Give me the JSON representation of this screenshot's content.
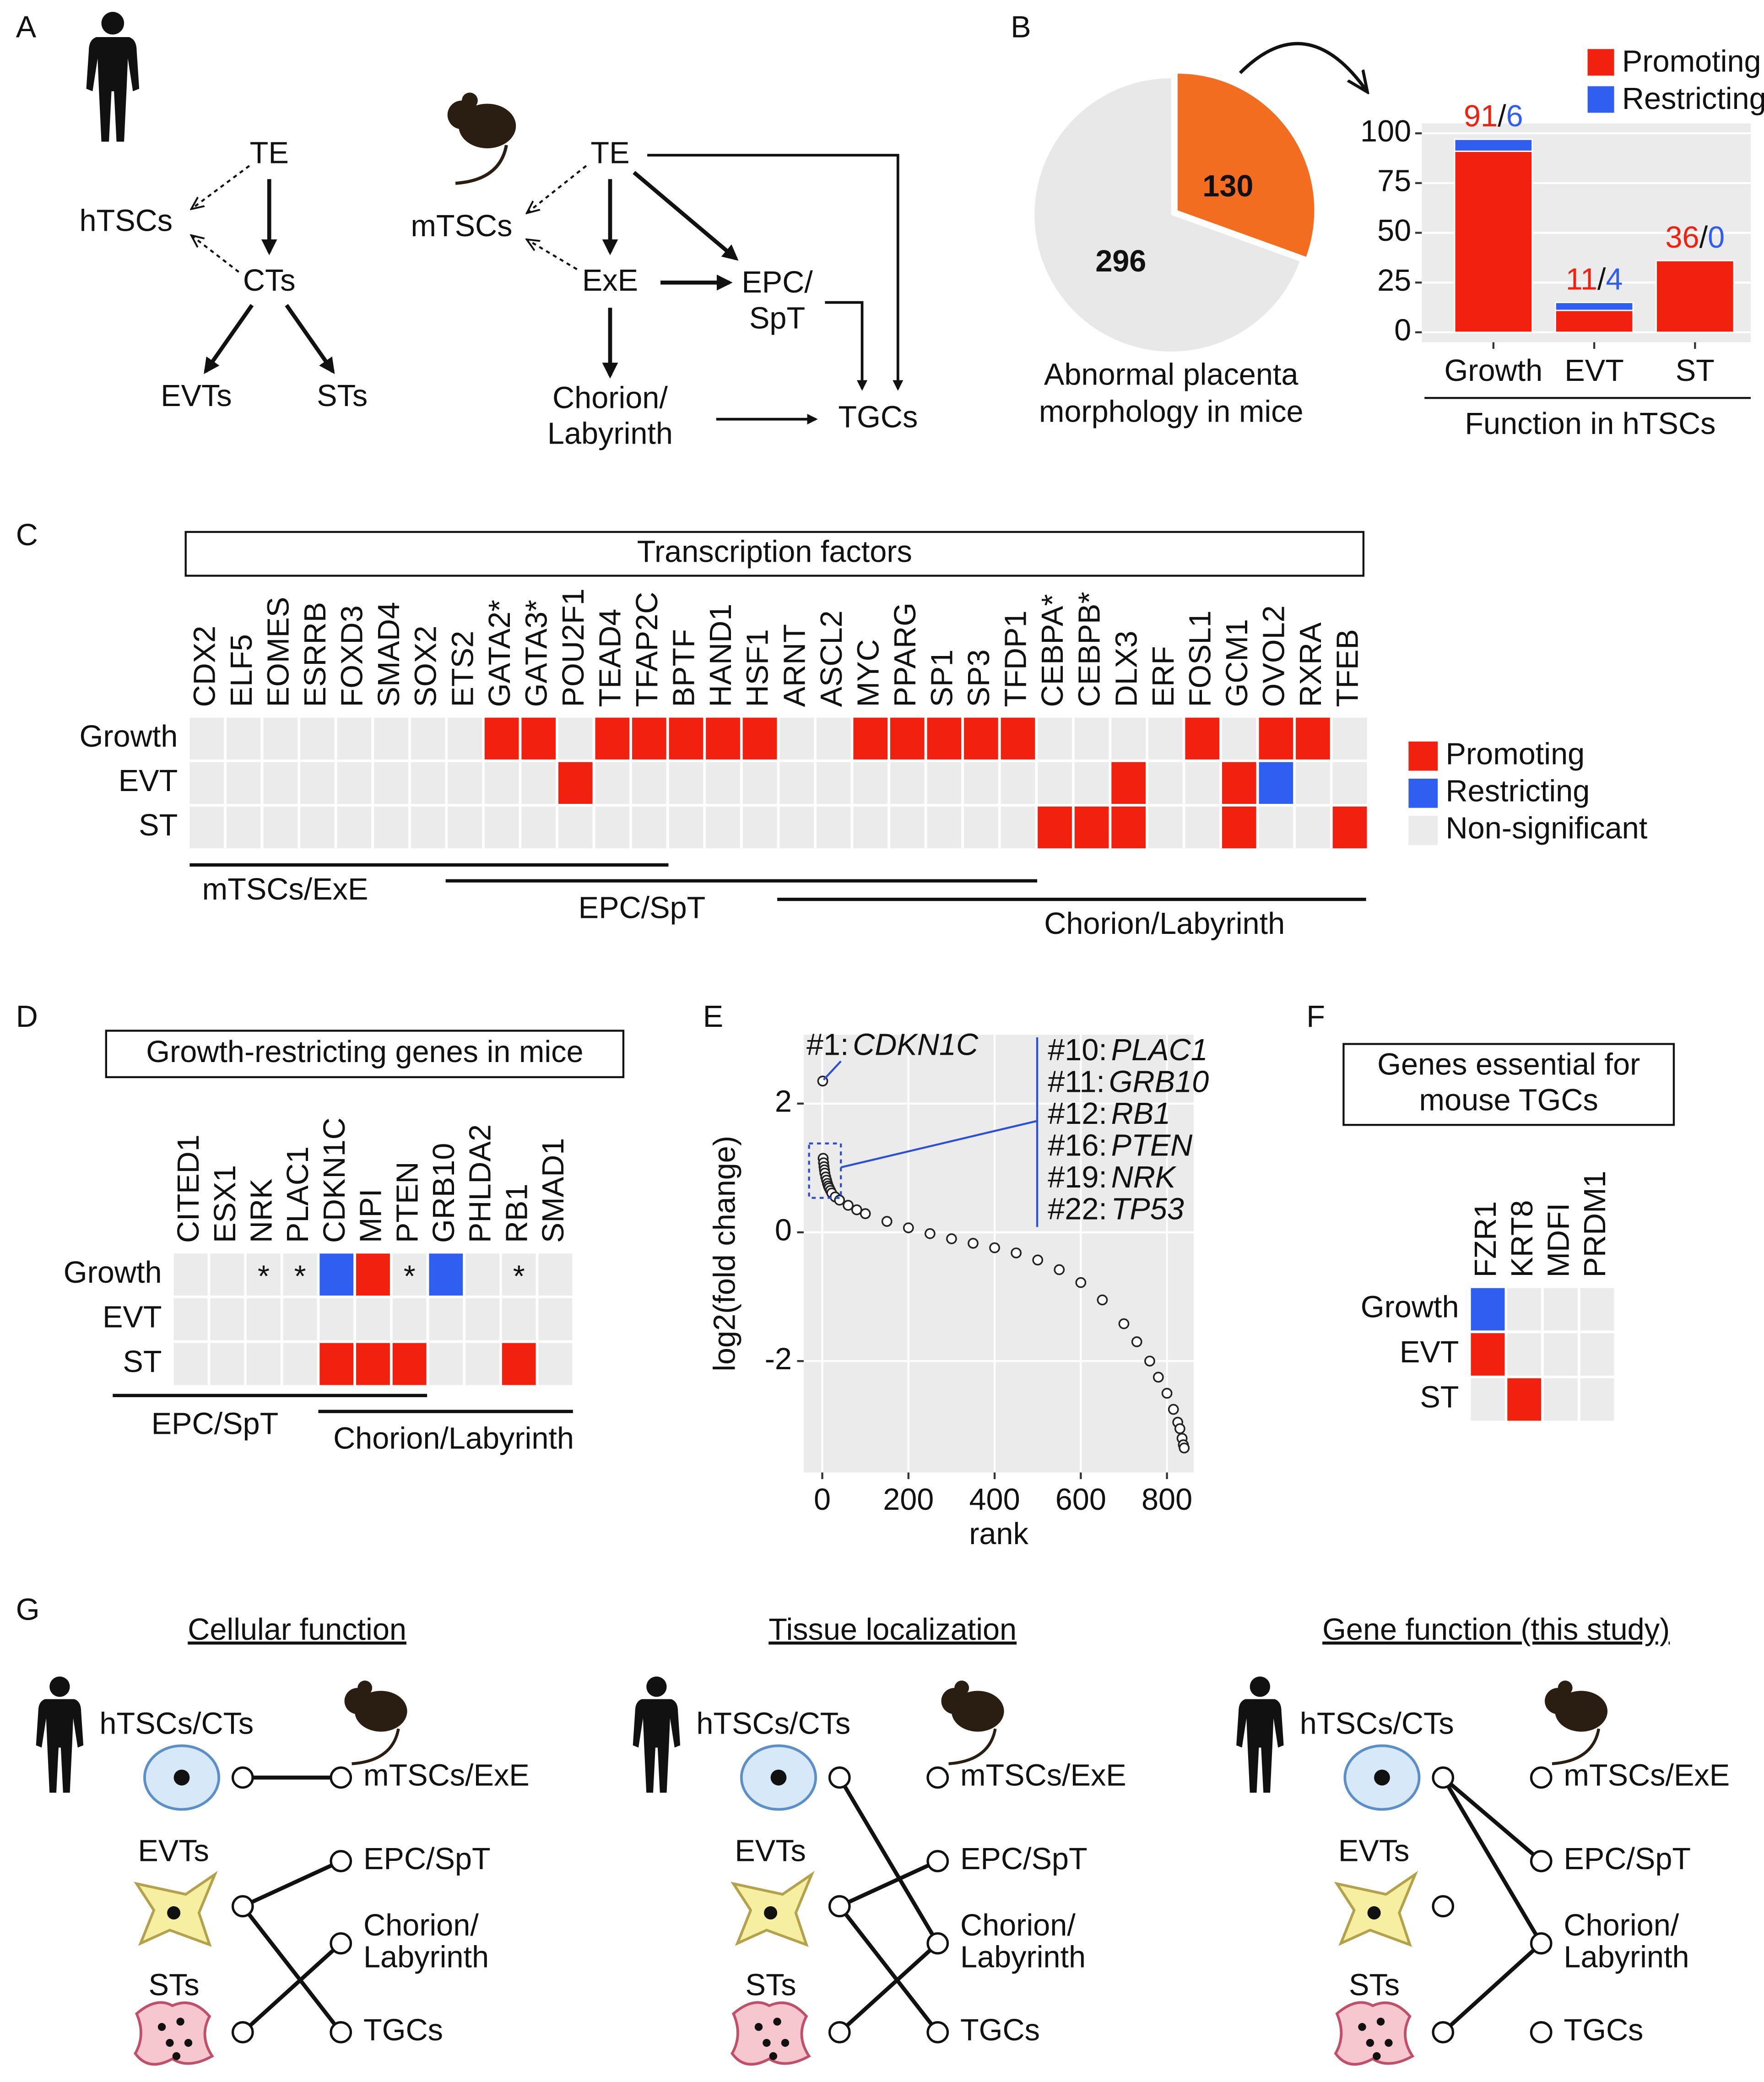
{
  "panel_labels": [
    "A",
    "B",
    "C",
    "D",
    "E",
    "F",
    "G"
  ],
  "panel_a": {
    "human": [
      "TE",
      "hTSCs",
      "CTs",
      "EVTs",
      "STs"
    ],
    "mouse": [
      [
        "TE"
      ],
      [
        "mTSCs"
      ],
      [
        "ExE"
      ],
      [
        "EPC/",
        "SpT"
      ],
      [
        "Chorion/",
        "Labyrinth"
      ],
      [
        "TGCs"
      ]
    ]
  },
  "panel_g": {
    "titles": [
      "Cellular function",
      "Tissue localization",
      "Gene function (this study)"
    ],
    "human": [
      "hTSCs/CTs",
      "EVTs",
      "STs"
    ],
    "mouse": [
      [
        "mTSCs/ExE"
      ],
      [
        "EPC/SpT"
      ],
      [
        "Chorion/",
        "Labyrinth"
      ],
      [
        "TGCs"
      ]
    ]
  },
  "chart_data": [
    {
      "type": "pie",
      "values": [
        130,
        296
      ],
      "colors": [
        "#f36d21",
        "#e8e8e8"
      ],
      "xlabel": [
        "Abnormal placenta",
        "morphology in mice"
      ]
    },
    {
      "type": "bar",
      "stacked": true,
      "categories": [
        "Growth",
        "EVT",
        "ST"
      ],
      "series": [
        {
          "name": "Promoting",
          "color": "#f2200e",
          "values": [
            91,
            11,
            36
          ]
        },
        {
          "name": "Restricting",
          "color": "#2f5ef0",
          "values": [
            6,
            4,
            0
          ]
        }
      ],
      "label_separator": "/",
      "xlabel": "Function in hTSCs",
      "ylim": [
        -5,
        105
      ],
      "yticks": [
        0,
        25,
        50,
        75,
        100
      ],
      "grid": true
    },
    {
      "type": "heatmap",
      "title": "Transcription factors",
      "columns": [
        "CDX2",
        "ELF5",
        "EOMES",
        "ESRRB",
        "FOXD3",
        "SMAD4",
        "SOX2",
        "ETS2",
        "GATA2*",
        "GATA3*",
        "POU2F1",
        "TEAD4",
        "TFAP2C",
        "BPTF",
        "HAND1",
        "HSF1",
        "ARNT",
        "ASCL2",
        "MYC",
        "PPARG",
        "SP1",
        "SP3",
        "TFDP1",
        "CEBPA*",
        "CEBPB*",
        "DLX3",
        "ERF",
        "FOSL1",
        "GCM1",
        "OVOL2",
        "RXRA",
        "TFEB"
      ],
      "rows": [
        "Growth",
        "EVT",
        "ST"
      ],
      "values": [
        [
          "Non-significant",
          "Non-significant",
          "Non-significant",
          "Non-significant",
          "Non-significant",
          "Non-significant",
          "Non-significant",
          "Non-significant",
          "Promoting",
          "Promoting",
          "Non-significant",
          "Promoting",
          "Promoting",
          "Promoting",
          "Promoting",
          "Promoting",
          "Non-significant",
          "Non-significant",
          "Promoting",
          "Promoting",
          "Promoting",
          "Promoting",
          "Promoting",
          "Non-significant",
          "Non-significant",
          "Non-significant",
          "Non-significant",
          "Promoting",
          "Non-significant",
          "Promoting",
          "Promoting",
          "Non-significant"
        ],
        [
          "Non-significant",
          "Non-significant",
          "Non-significant",
          "Non-significant",
          "Non-significant",
          "Non-significant",
          "Non-significant",
          "Non-significant",
          "Non-significant",
          "Non-significant",
          "Promoting",
          "Non-significant",
          "Non-significant",
          "Non-significant",
          "Non-significant",
          "Non-significant",
          "Non-significant",
          "Non-significant",
          "Non-significant",
          "Non-significant",
          "Non-significant",
          "Non-significant",
          "Non-significant",
          "Non-significant",
          "Non-significant",
          "Promoting",
          "Non-significant",
          "Non-significant",
          "Promoting",
          "Restricting",
          "Non-significant",
          "Non-significant"
        ],
        [
          "Non-significant",
          "Non-significant",
          "Non-significant",
          "Non-significant",
          "Non-significant",
          "Non-significant",
          "Non-significant",
          "Non-significant",
          "Non-significant",
          "Non-significant",
          "Non-significant",
          "Non-significant",
          "Non-significant",
          "Non-significant",
          "Non-significant",
          "Non-significant",
          "Non-significant",
          "Non-significant",
          "Non-significant",
          "Non-significant",
          "Non-significant",
          "Non-significant",
          "Non-significant",
          "Promoting",
          "Promoting",
          "Promoting",
          "Non-significant",
          "Non-significant",
          "Promoting",
          "Non-significant",
          "Non-significant",
          "Promoting"
        ]
      ],
      "legend": [
        {
          "name": "Promoting",
          "color": "#f2200e"
        },
        {
          "name": "Restricting",
          "color": "#2f5ef0"
        },
        {
          "name": "Non-significant",
          "color": "#ebebeb"
        }
      ],
      "groups": [
        "mTSCs/ExE",
        "EPC/SpT",
        "Chorion/Labyrinth"
      ]
    },
    {
      "type": "heatmap",
      "title": "Growth-restricting genes in mice",
      "columns": [
        "CITED1",
        "ESX1",
        "NRK",
        "PLAC1",
        "CDKN1C",
        "MPI",
        "PTEN",
        "GRB10",
        "PHLDA2",
        "RB1",
        "SMAD1"
      ],
      "rows": [
        "Growth",
        "EVT",
        "ST"
      ],
      "values": [
        [
          "Non-significant",
          "Non-significant",
          "Non-significant",
          "Non-significant",
          "Restricting",
          "Promoting",
          "Non-significant",
          "Restricting",
          "Non-significant",
          "Non-significant",
          "Non-significant"
        ],
        [
          "Non-significant",
          "Non-significant",
          "Non-significant",
          "Non-significant",
          "Non-significant",
          "Non-significant",
          "Non-significant",
          "Non-significant",
          "Non-significant",
          "Non-significant",
          "Non-significant"
        ],
        [
          "Non-significant",
          "Non-significant",
          "Non-significant",
          "Non-significant",
          "Promoting",
          "Promoting",
          "Promoting",
          "Non-significant",
          "Non-significant",
          "Promoting",
          "Non-significant"
        ]
      ],
      "notes": [
        [
          null,
          null,
          "*",
          "*",
          null,
          null,
          "*",
          null,
          null,
          "*",
          null
        ],
        [
          null,
          null,
          null,
          null,
          null,
          null,
          null,
          null,
          null,
          null,
          null
        ],
        [
          null,
          null,
          null,
          null,
          null,
          null,
          null,
          null,
          null,
          null,
          null
        ]
      ],
      "groups": [
        "EPC/SpT",
        "Chorion/Labyrinth"
      ]
    },
    {
      "type": "scatter",
      "xlabel": "rank",
      "ylabel": "log2(fold change)",
      "x": [
        1,
        2,
        3,
        4,
        5,
        6,
        8,
        10,
        12,
        14,
        16,
        19,
        22,
        30,
        40,
        60,
        80,
        100,
        150,
        200,
        250,
        300,
        350,
        400,
        450,
        500,
        550,
        600,
        650,
        700,
        730,
        760,
        780,
        800,
        815,
        825,
        830,
        835,
        838,
        840
      ],
      "values": [
        2.35,
        1.15,
        1.08,
        1.02,
        0.97,
        0.92,
        0.86,
        0.81,
        0.76,
        0.72,
        0.69,
        0.65,
        0.61,
        0.55,
        0.5,
        0.42,
        0.35,
        0.29,
        0.17,
        0.07,
        -0.02,
        -0.1,
        -0.17,
        -0.24,
        -0.32,
        -0.43,
        -0.58,
        -0.78,
        -1.05,
        -1.42,
        -1.7,
        -2.0,
        -2.25,
        -2.5,
        -2.75,
        -2.95,
        -3.05,
        -3.2,
        -3.3,
        -3.35
      ],
      "xlim": [
        -43,
        862
      ],
      "xticks": [
        0,
        200,
        400,
        600,
        800
      ],
      "ylim": [
        -3.73,
        3.07
      ],
      "yticks": [
        -2,
        0,
        2
      ],
      "grid": true,
      "annotations": [
        [
          "#1:",
          "CDKN1C"
        ],
        [
          "#10:",
          "PLAC1"
        ],
        [
          "#11:",
          "GRB10"
        ],
        [
          "#12:",
          "RB1"
        ],
        [
          "#16:",
          "PTEN"
        ],
        [
          "#19:",
          "NRK"
        ],
        [
          "#22:",
          "TP53"
        ]
      ]
    },
    {
      "type": "heatmap",
      "title": [
        "Genes essential for",
        "mouse TGCs"
      ],
      "columns": [
        "FZR1",
        "KRT8",
        "MDFI",
        "PRDM1"
      ],
      "rows": [
        "Growth",
        "EVT",
        "ST"
      ],
      "values": [
        [
          "Restricting",
          "Non-significant",
          "Non-significant",
          "Non-significant"
        ],
        [
          "Promoting",
          "Non-significant",
          "Non-significant",
          "Non-significant"
        ],
        [
          "Non-significant",
          "Promoting",
          "Non-significant",
          "Non-significant"
        ]
      ]
    }
  ]
}
